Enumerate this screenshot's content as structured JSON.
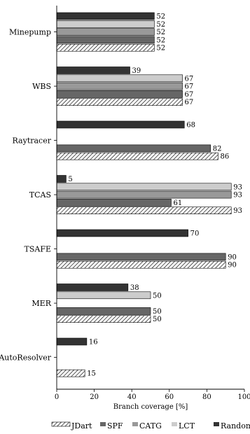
{
  "chart_data": {
    "type": "bar",
    "orientation": "horizontal",
    "categories": [
      "Minepump",
      "WBS",
      "Raytracer",
      "TCAS",
      "TSAFE",
      "MER",
      "AutoResolver"
    ],
    "series": [
      {
        "name": "Random",
        "color": "#333333",
        "values": [
          52,
          39,
          68,
          5,
          70,
          38,
          16
        ]
      },
      {
        "name": "LCT",
        "color": "#cccccc",
        "values": [
          52,
          67,
          null,
          93,
          null,
          50,
          null
        ]
      },
      {
        "name": "CATG",
        "color": "#999999",
        "values": [
          52,
          67,
          null,
          93,
          null,
          null,
          null
        ]
      },
      {
        "name": "SPF",
        "color": "#666666",
        "values": [
          52,
          67,
          82,
          61,
          90,
          50,
          null
        ]
      },
      {
        "name": "JDart",
        "color": "#ffffff",
        "pattern": "hatch",
        "values": [
          52,
          67,
          86,
          93,
          90,
          50,
          15
        ]
      }
    ],
    "legend_order": [
      "JDart",
      "SPF",
      "CATG",
      "LCT",
      "Random"
    ],
    "xlabel": "Branch coverage [%]",
    "xlim": [
      0,
      100
    ],
    "xticks": [
      "0",
      "20",
      "40",
      "60",
      "80",
      "100"
    ],
    "legend_position": "bottom",
    "grid": false
  }
}
